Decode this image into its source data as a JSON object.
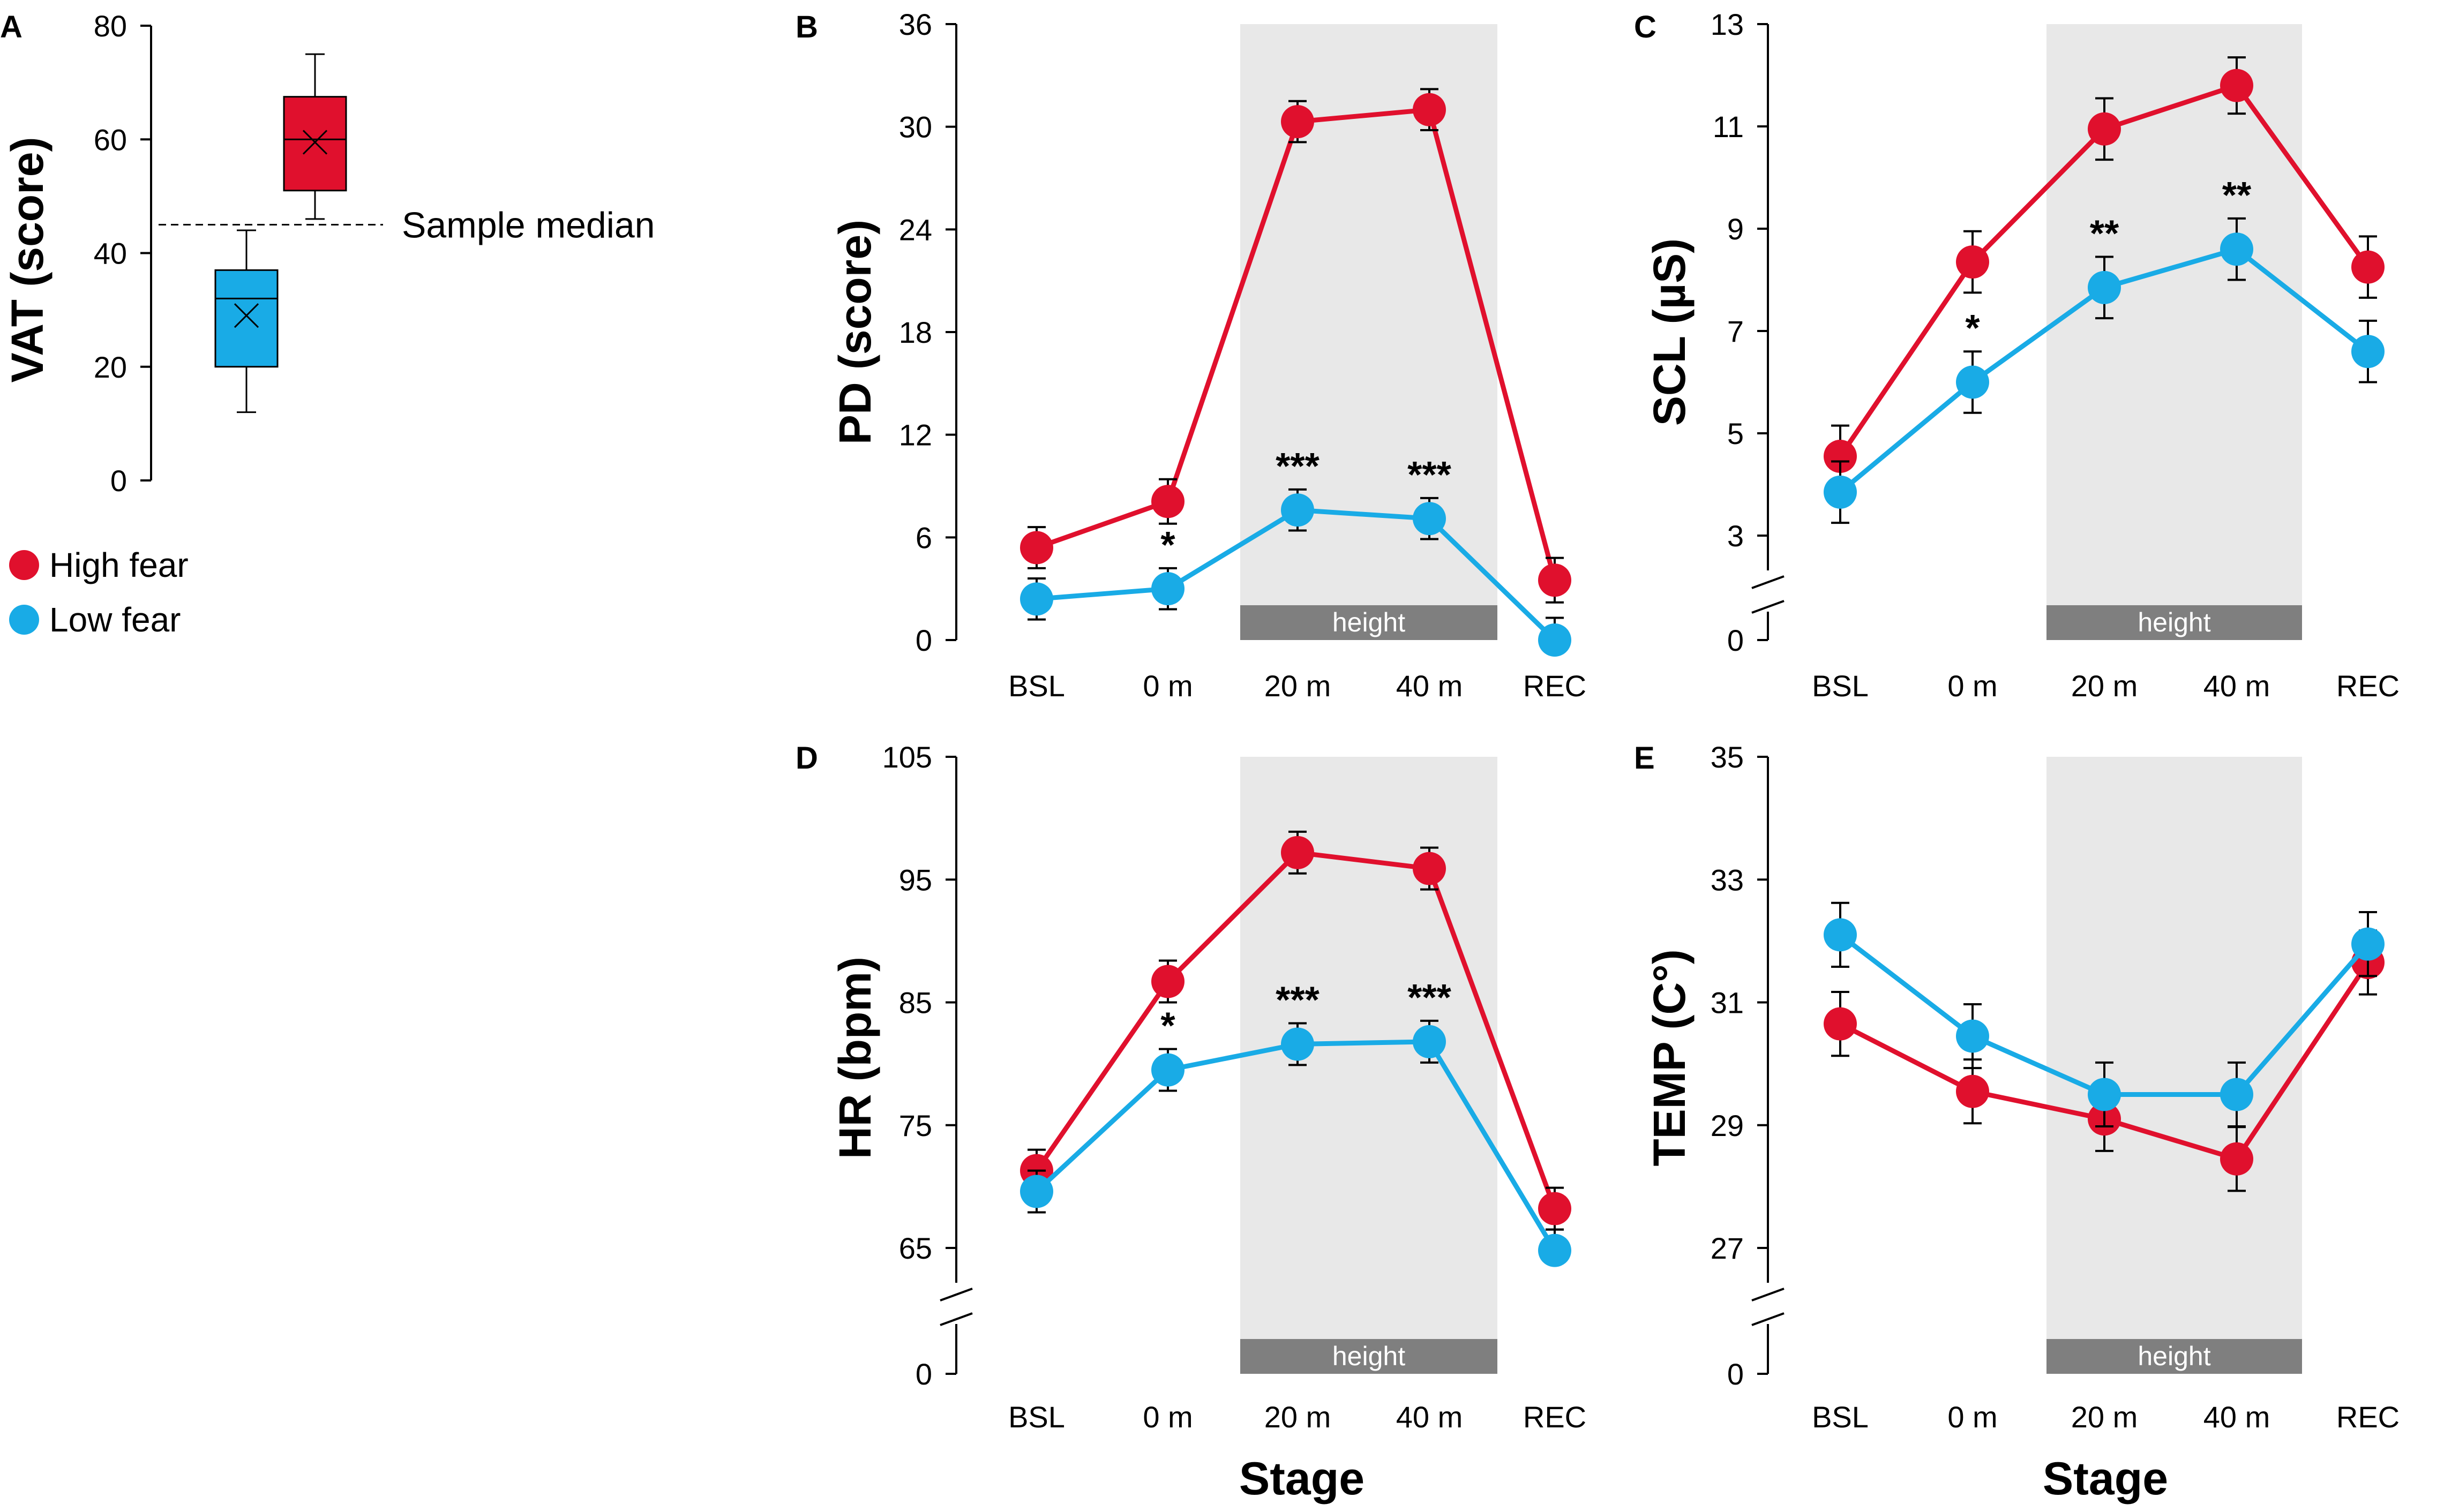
{
  "colors": {
    "high": "#e0102d",
    "low": "#19abe6",
    "shade": "#e8e8e8",
    "height_bar": "#7f7f7f"
  },
  "legend": {
    "high_label": "High fear",
    "low_label": "Low fear"
  },
  "chart_data": [
    {
      "id": "A",
      "type": "box",
      "letter": "A",
      "ylabel": "VAT (score)",
      "ylim": [
        0,
        80
      ],
      "yticks": [
        "0",
        "20",
        "40",
        "60",
        "80"
      ],
      "median_line": {
        "value": 45,
        "label": "Sample median"
      },
      "boxes": [
        {
          "group": "Low fear",
          "min": 12,
          "q1": 20,
          "median": 32,
          "q3": 37,
          "max": 44,
          "mean": 29
        },
        {
          "group": "High fear",
          "min": 46,
          "q1": 51,
          "median": 60,
          "q3": 67.5,
          "max": 75,
          "mean": 59.5
        }
      ]
    },
    {
      "id": "B",
      "type": "line",
      "letter": "B",
      "ylabel": "PD (score)",
      "ylim": [
        0,
        36
      ],
      "axis_break": false,
      "yticks": [
        "0",
        "6",
        "12",
        "18",
        "24",
        "30",
        "36"
      ],
      "categories": [
        "BSL",
        "0 m",
        "20 m",
        "40 m",
        "REC"
      ],
      "shaded_label": "height",
      "xlabel": "",
      "series": [
        {
          "name": "High fear",
          "values": [
            5.4,
            8.1,
            30.3,
            31.0,
            3.5
          ],
          "errors": [
            1.2,
            1.3,
            1.2,
            1.2,
            1.3
          ]
        },
        {
          "name": "Low fear",
          "values": [
            2.4,
            3.0,
            7.6,
            7.1,
            0.0
          ],
          "errors": [
            1.2,
            1.2,
            1.2,
            1.2,
            1.3
          ]
        }
      ],
      "significance": [
        {
          "category": "0 m",
          "label": "*"
        },
        {
          "category": "20 m",
          "label": "***"
        },
        {
          "category": "40 m",
          "label": "***"
        }
      ]
    },
    {
      "id": "C",
      "type": "line",
      "letter": "C",
      "ylabel": "SCL (µS)",
      "ylim": [
        3,
        13
      ],
      "axis_break": true,
      "yticks": [
        "3",
        "5",
        "7",
        "9",
        "11",
        "13"
      ],
      "break_zero": "0",
      "categories": [
        "BSL",
        "0 m",
        "20 m",
        "40 m",
        "REC"
      ],
      "shaded_label": "height",
      "xlabel": "",
      "series": [
        {
          "name": "High fear",
          "values": [
            4.55,
            8.35,
            10.95,
            11.8,
            8.25
          ],
          "errors": [
            0.6,
            0.6,
            0.6,
            0.55,
            0.6
          ]
        },
        {
          "name": "Low fear",
          "values": [
            3.85,
            6.0,
            7.85,
            8.6,
            6.6
          ],
          "errors": [
            0.6,
            0.6,
            0.6,
            0.6,
            0.6
          ]
        }
      ],
      "significance": [
        {
          "category": "0 m",
          "label": "*"
        },
        {
          "category": "20 m",
          "label": "**"
        },
        {
          "category": "40 m",
          "label": "**"
        }
      ]
    },
    {
      "id": "D",
      "type": "line",
      "letter": "D",
      "ylabel": "HR (bpm)",
      "ylim": [
        65,
        105
      ],
      "axis_break": true,
      "yticks": [
        "65",
        "75",
        "85",
        "95",
        "105"
      ],
      "break_zero": "0",
      "categories": [
        "BSL",
        "0 m",
        "20 m",
        "40 m",
        "REC"
      ],
      "shaded_label": "height",
      "xlabel": "Stage",
      "series": [
        {
          "name": "High fear",
          "values": [
            71.3,
            86.7,
            97.2,
            95.9,
            68.2
          ],
          "errors": [
            1.7,
            1.7,
            1.7,
            1.7,
            1.7
          ]
        },
        {
          "name": "Low fear",
          "values": [
            69.6,
            79.5,
            81.6,
            81.8,
            64.8
          ],
          "errors": [
            1.7,
            1.7,
            1.7,
            1.7,
            1.7
          ]
        }
      ],
      "significance": [
        {
          "category": "0 m",
          "label": "*"
        },
        {
          "category": "20 m",
          "label": "***"
        },
        {
          "category": "40 m",
          "label": "***"
        }
      ]
    },
    {
      "id": "E",
      "type": "line",
      "letter": "E",
      "ylabel": "TEMP (C°)",
      "ylim": [
        27,
        35
      ],
      "axis_break": true,
      "yticks": [
        "27",
        "29",
        "31",
        "33",
        "35"
      ],
      "break_zero": "0",
      "categories": [
        "BSL",
        "0 m",
        "20 m",
        "40 m",
        "REC"
      ],
      "shaded_label": "height",
      "xlabel": "Stage",
      "series": [
        {
          "name": "High fear",
          "values": [
            30.65,
            29.55,
            29.1,
            28.45,
            31.65
          ],
          "errors": [
            0.52,
            0.52,
            0.52,
            0.52,
            0.52
          ]
        },
        {
          "name": "Low fear",
          "values": [
            32.1,
            30.45,
            29.5,
            29.5,
            31.95
          ],
          "errors": [
            0.52,
            0.52,
            0.52,
            0.52,
            0.52
          ]
        }
      ],
      "significance": []
    }
  ]
}
